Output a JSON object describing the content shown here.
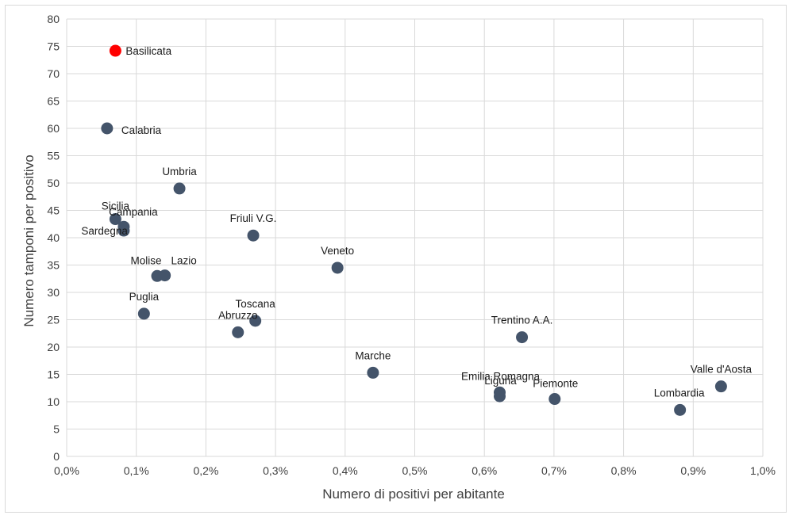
{
  "chart_data": {
    "type": "scatter",
    "title": "",
    "xlabel": "Numero di positivi per abitante",
    "ylabel": "Numero tamponi per positivo",
    "xlim": [
      0,
      1.0
    ],
    "ylim": [
      0,
      80
    ],
    "x_ticks": [
      "0,0%",
      "0,1%",
      "0,2%",
      "0,3%",
      "0,4%",
      "0,5%",
      "0,6%",
      "0,7%",
      "0,8%",
      "0,9%",
      "1,0%"
    ],
    "y_ticks": [
      "0",
      "5",
      "10",
      "15",
      "20",
      "25",
      "30",
      "35",
      "40",
      "45",
      "50",
      "55",
      "60",
      "65",
      "70",
      "75",
      "80"
    ],
    "grid": true,
    "colors": {
      "point": "#44546a",
      "highlight": "#ff0000",
      "highlight_label": "#c00000"
    },
    "points": [
      {
        "label": "Basilicata",
        "x": 0.07,
        "y": 74.2,
        "highlight": true,
        "label_pos": "right"
      },
      {
        "label": "Calabria",
        "x": 0.058,
        "y": 60.0,
        "label_pos": "right-below"
      },
      {
        "label": "Umbria",
        "x": 0.162,
        "y": 49.0,
        "label_pos": "above"
      },
      {
        "label": "Sicilia",
        "x": 0.07,
        "y": 43.4,
        "label_pos": "above-high"
      },
      {
        "label": "Campania",
        "x": 0.082,
        "y": 42.0,
        "label_pos": "above"
      },
      {
        "label": "Sardegna",
        "x": 0.082,
        "y": 41.3,
        "label_pos": "left"
      },
      {
        "label": "Friuli V.G.",
        "x": 0.268,
        "y": 40.4,
        "label_pos": "above"
      },
      {
        "label": "Veneto",
        "x": 0.389,
        "y": 34.5,
        "label_pos": "above"
      },
      {
        "label": "Molise",
        "x": 0.13,
        "y": 33.0,
        "label_pos": "above-left"
      },
      {
        "label": "Lazio",
        "x": 0.141,
        "y": 33.1,
        "label_pos": "above-right"
      },
      {
        "label": "Puglia",
        "x": 0.111,
        "y": 26.1,
        "label_pos": "above"
      },
      {
        "label": "Toscana",
        "x": 0.271,
        "y": 24.8,
        "label_pos": "above"
      },
      {
        "label": "Abruzzo",
        "x": 0.246,
        "y": 22.7,
        "label_pos": "above"
      },
      {
        "label": "Trentino A.A.",
        "x": 0.654,
        "y": 21.8,
        "label_pos": "above"
      },
      {
        "label": "Marche",
        "x": 0.44,
        "y": 15.3,
        "label_pos": "above"
      },
      {
        "label": "Emilia Romagna",
        "x": 0.622,
        "y": 11.7,
        "label_pos": "above-high"
      },
      {
        "label": "Liguria",
        "x": 0.622,
        "y": 11.0,
        "label_pos": "above"
      },
      {
        "label": "Piemonte",
        "x": 0.701,
        "y": 10.5,
        "label_pos": "above-right"
      },
      {
        "label": "Valle d'Aosta",
        "x": 0.94,
        "y": 12.8,
        "label_pos": "above"
      },
      {
        "label": "Lombardia",
        "x": 0.881,
        "y": 8.5,
        "label_pos": "above-left"
      }
    ]
  }
}
